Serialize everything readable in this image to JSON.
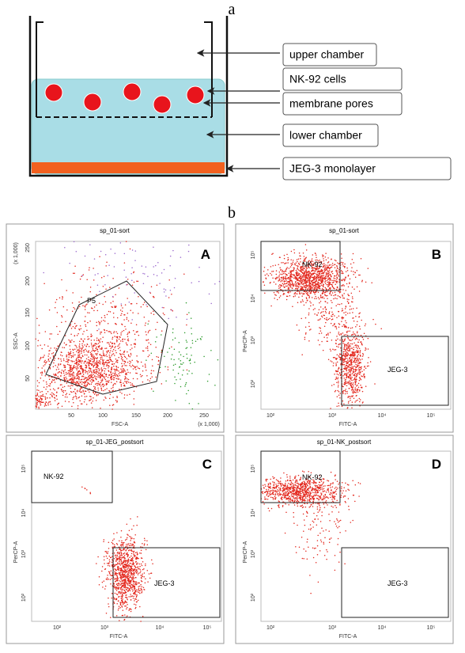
{
  "panel_a": {
    "label": "a",
    "chambers": [
      "upper chamber",
      "NK-92 cells",
      "membrane pores",
      "lower chamber",
      "JEG-3 monolayer"
    ]
  },
  "panel_b": {
    "label": "b",
    "plots": [
      {
        "title": "sp_01-sort",
        "letter": "A",
        "x_label": "FSC-A",
        "y_label": "SSC-A",
        "x_scale": "(x 1,000)",
        "y_scale": "(x 1,000)",
        "xticks": [
          "50",
          "100",
          "150",
          "200",
          "250"
        ],
        "yticks": [
          "250",
          "200",
          "150",
          "100",
          "50"
        ],
        "gates": [
          "P5"
        ]
      },
      {
        "title": "sp_01-sort",
        "letter": "B",
        "x_label": "FITC-A",
        "y_label": "PerCP-A",
        "xticks": [
          "10²",
          "10³",
          "10⁴",
          "10⁵"
        ],
        "yticks": [
          "10⁵",
          "10⁴",
          "10³",
          "10²"
        ],
        "gates": [
          "NK-92",
          "JEG-3"
        ]
      },
      {
        "title": "sp_01-JEG_postsort",
        "letter": "C",
        "x_label": "FITC-A",
        "y_label": "PerCP-A",
        "xticks": [
          "10²",
          "10³",
          "10⁴",
          "10⁵"
        ],
        "yticks": [
          "10⁵",
          "10⁴",
          "10³",
          "10²"
        ],
        "gates": [
          "NK-92",
          "JEG-3"
        ]
      },
      {
        "title": "sp_01-NK_postsort",
        "letter": "D",
        "x_label": "FITC-A",
        "y_label": "PerCP-A",
        "xticks": [
          "10²",
          "10³",
          "10⁴",
          "10⁵"
        ],
        "yticks": [
          "10⁵",
          "10⁴",
          "10³",
          "10²"
        ],
        "gates": [
          "NK-92",
          "JEG-3"
        ]
      }
    ]
  }
}
